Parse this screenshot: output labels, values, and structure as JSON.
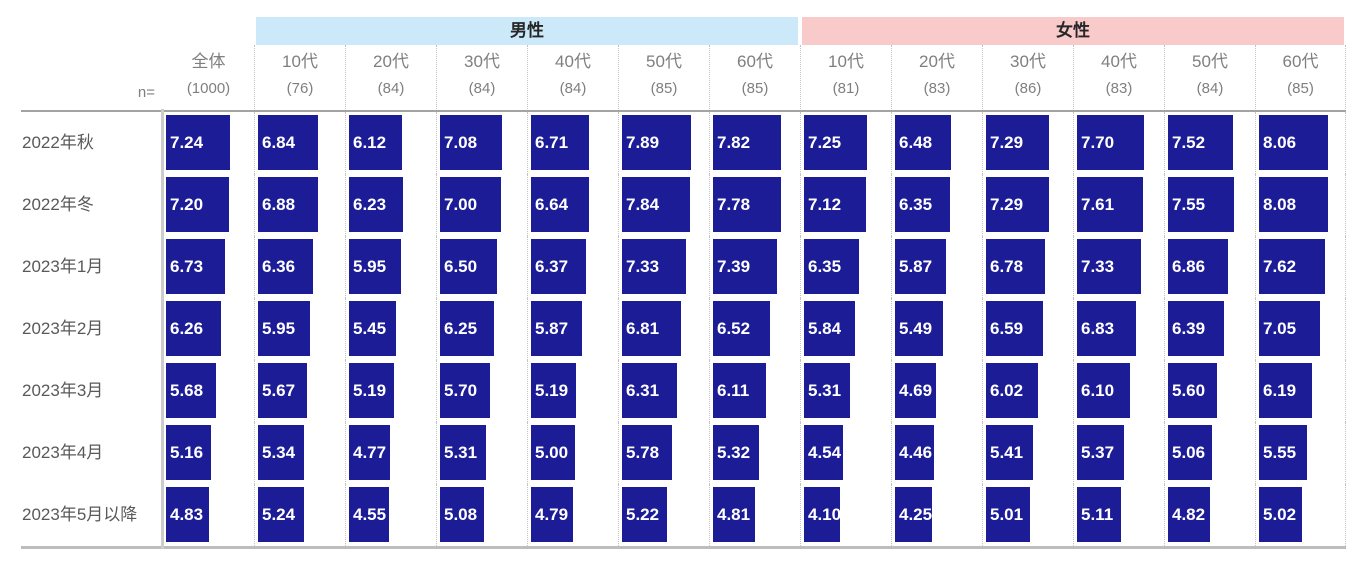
{
  "chart_data": {
    "type": "bar",
    "orientation": "horizontal",
    "title": "",
    "value_axis_max": 10,
    "n_label": "n=",
    "bar_color": "#1c1d96",
    "groups": [
      {
        "label": "男性",
        "color": "#cce9fa",
        "span": 6
      },
      {
        "label": "女性",
        "color": "#f9caca",
        "span": 6
      }
    ],
    "columns": [
      {
        "group": "",
        "label": "全体",
        "n": "(1000)"
      },
      {
        "group": "男性",
        "label": "10代",
        "n": "(76)"
      },
      {
        "group": "男性",
        "label": "20代",
        "n": "(84)"
      },
      {
        "group": "男性",
        "label": "30代",
        "n": "(84)"
      },
      {
        "group": "男性",
        "label": "40代",
        "n": "(84)"
      },
      {
        "group": "男性",
        "label": "50代",
        "n": "(85)"
      },
      {
        "group": "男性",
        "label": "60代",
        "n": "(85)"
      },
      {
        "group": "女性",
        "label": "10代",
        "n": "(81)"
      },
      {
        "group": "女性",
        "label": "20代",
        "n": "(83)"
      },
      {
        "group": "女性",
        "label": "30代",
        "n": "(86)"
      },
      {
        "group": "女性",
        "label": "40代",
        "n": "(83)"
      },
      {
        "group": "女性",
        "label": "50代",
        "n": "(84)"
      },
      {
        "group": "女性",
        "label": "60代",
        "n": "(85)"
      }
    ],
    "rows": [
      {
        "label": "2022年秋",
        "values": [
          7.24,
          6.84,
          6.12,
          7.08,
          6.71,
          7.89,
          7.82,
          7.25,
          6.48,
          7.29,
          7.7,
          7.52,
          8.06
        ]
      },
      {
        "label": "2022年冬",
        "values": [
          7.2,
          6.88,
          6.23,
          7.0,
          6.64,
          7.84,
          7.78,
          7.12,
          6.35,
          7.29,
          7.61,
          7.55,
          8.08
        ]
      },
      {
        "label": "2023年1月",
        "values": [
          6.73,
          6.36,
          5.95,
          6.5,
          6.37,
          7.33,
          7.39,
          6.35,
          5.87,
          6.78,
          7.33,
          6.86,
          7.62
        ]
      },
      {
        "label": "2023年2月",
        "values": [
          6.26,
          5.95,
          5.45,
          6.25,
          5.87,
          6.81,
          6.52,
          5.84,
          5.49,
          6.59,
          6.83,
          6.39,
          7.05
        ]
      },
      {
        "label": "2023年3月",
        "values": [
          5.68,
          5.67,
          5.19,
          5.7,
          5.19,
          6.31,
          6.11,
          5.31,
          4.69,
          6.02,
          6.1,
          5.6,
          6.19
        ]
      },
      {
        "label": "2023年4月",
        "values": [
          5.16,
          5.34,
          4.77,
          5.31,
          5.0,
          5.78,
          5.32,
          4.54,
          4.46,
          5.41,
          5.37,
          5.06,
          5.55
        ]
      },
      {
        "label": "2023年5月以降",
        "values": [
          4.83,
          5.24,
          4.55,
          5.08,
          4.79,
          5.22,
          4.81,
          4.1,
          4.25,
          5.01,
          5.11,
          4.82,
          5.02
        ]
      }
    ],
    "value_format": "0.00"
  }
}
